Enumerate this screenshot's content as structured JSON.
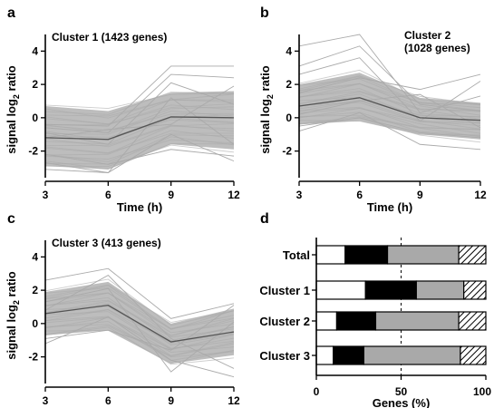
{
  "chart_data": [
    {
      "type": "line",
      "panel": "a",
      "title": "Cluster 1 (1423 genes)",
      "xlabel": "Time (h)",
      "ylabel_prefix": "signal log",
      "ylabel_sub": "2",
      "ylabel_suffix": " ratio",
      "x": [
        3,
        6,
        9,
        12
      ],
      "xticks": [
        "3",
        "6",
        "9",
        "12"
      ],
      "yticks": [
        "4",
        "2",
        "0",
        "-2"
      ],
      "xlim": [
        3,
        12
      ],
      "ylim": [
        -3.6,
        5
      ],
      "median": [
        -1.2,
        -1.3,
        0.05,
        0.0
      ],
      "band_upper": [
        0.7,
        0.4,
        1.5,
        1.6
      ],
      "band_lower": [
        -2.9,
        -3.1,
        -1.6,
        -1.9
      ],
      "outliers": [
        [
          -0.6,
          -0.9,
          2.6,
          2.4
        ],
        [
          -0.4,
          -0.5,
          3.1,
          3.1
        ],
        [
          -2.7,
          -3.3,
          1.2,
          -1.6
        ],
        [
          -3.1,
          -3.3,
          -1.0,
          -2.6
        ],
        [
          -0.9,
          -1.6,
          2.1,
          0.8
        ],
        [
          -2.2,
          -2.8,
          -1.9,
          -2.3
        ],
        [
          -1.2,
          -0.7,
          -0.4,
          1.9
        ]
      ]
    },
    {
      "type": "line",
      "panel": "b",
      "title_lines": [
        "Cluster 2",
        "(1028 genes)"
      ],
      "xlabel": "Time (h)",
      "ylabel_prefix": "signal log",
      "ylabel_sub": "2",
      "ylabel_suffix": " ratio",
      "x": [
        3,
        6,
        9,
        12
      ],
      "xticks": [
        "3",
        "6",
        "9",
        "12"
      ],
      "yticks": [
        "4",
        "2",
        "0",
        "-2"
      ],
      "xlim": [
        3,
        12
      ],
      "ylim": [
        -3.6,
        5
      ],
      "median": [
        0.7,
        1.2,
        0.0,
        -0.15
      ],
      "band_upper": [
        2.0,
        2.7,
        1.2,
        0.9
      ],
      "band_lower": [
        -0.4,
        -0.2,
        -1.0,
        -1.3
      ],
      "outliers": [
        [
          4.3,
          5.0,
          0.3,
          1.3
        ],
        [
          3.1,
          4.3,
          0.8,
          0.4
        ],
        [
          2.6,
          3.6,
          -0.2,
          2.2
        ],
        [
          -0.8,
          0.3,
          -1.6,
          -1.9
        ],
        [
          1.5,
          2.4,
          1.7,
          2.6
        ],
        [
          0.2,
          1.0,
          1.4,
          -0.6
        ],
        [
          -0.5,
          0.0,
          -0.9,
          -1.2
        ]
      ]
    },
    {
      "type": "line",
      "panel": "c",
      "title": "Cluster 3 (413 genes)",
      "xlabel": "Time (h)",
      "ylabel_prefix": "signal log",
      "ylabel_sub": "2",
      "ylabel_suffix": " ratio",
      "x": [
        3,
        6,
        9,
        12
      ],
      "xticks": [
        "3",
        "6",
        "9",
        "12"
      ],
      "yticks": [
        "4",
        "2",
        "0",
        "-2"
      ],
      "xlim": [
        3,
        12
      ],
      "ylim": [
        -3.6,
        5
      ],
      "median": [
        0.6,
        1.1,
        -1.1,
        -0.5
      ],
      "band_upper": [
        1.9,
        2.5,
        0.0,
        0.9
      ],
      "band_lower": [
        -0.7,
        -0.4,
        -2.4,
        -1.9
      ],
      "outliers": [
        [
          2.6,
          3.3,
          0.3,
          1.2
        ],
        [
          -1.2,
          0.4,
          -2.2,
          -3.2
        ],
        [
          0.8,
          2.9,
          -0.9,
          -2.7
        ],
        [
          1.3,
          2.1,
          -2.9,
          0.1
        ],
        [
          -0.9,
          -0.4,
          -1.6,
          1.1
        ]
      ]
    },
    {
      "type": "bar",
      "panel": "d",
      "stacked": true,
      "horizontal": true,
      "categories": [
        "Total",
        "Cluster 1",
        "Cluster 2",
        "Cluster 3"
      ],
      "xlabel": "Genes (%)",
      "xticks": [
        "0",
        "50",
        "100"
      ],
      "xlim": [
        0,
        100
      ],
      "reference_line": 50,
      "segment_styles": [
        "white",
        "black",
        "gray",
        "hatched"
      ],
      "values": [
        [
          17,
          25,
          42,
          16
        ],
        [
          29,
          30,
          28,
          13
        ],
        [
          12,
          23,
          49,
          16
        ],
        [
          10,
          18,
          57,
          15
        ]
      ]
    }
  ],
  "colors": {
    "band": "#bdbdbd",
    "outline": "#aaaaaa",
    "median": "#555555",
    "bar_white": "#ffffff",
    "bar_black": "#000000",
    "bar_gray": "#a9a9a9"
  }
}
